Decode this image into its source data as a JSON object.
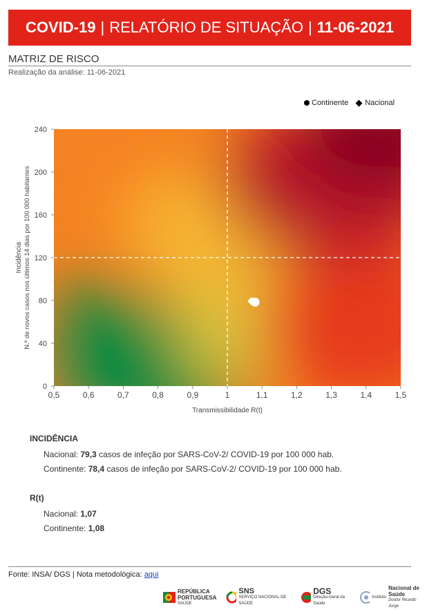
{
  "header": {
    "part1": "COVID-19",
    "sep1": "|",
    "part2": "RELATÓRIO DE SITUAÇÃO",
    "sep2": "|",
    "part3": "11-06-2021"
  },
  "section": {
    "title": "MATRIZ DE RISCO",
    "subtitle": "Realização da análise: 11-06-2021"
  },
  "legend": {
    "continente": "Continente",
    "nacional": "Nacional"
  },
  "chart_data": {
    "type": "scatter",
    "xlabel": "Transmissibilidade R(t)",
    "ylabel_line1": "Incidência",
    "ylabel_line2": "N.º de novos casos nos últimos 14 dias por 100 000 habitantes",
    "xlim": [
      0.5,
      1.5
    ],
    "ylim": [
      0,
      240
    ],
    "x_ticks": [
      "0,5",
      "0,6",
      "0,7",
      "0,8",
      "0,9",
      "1",
      "1,1",
      "1,2",
      "1,3",
      "1,4",
      "1,5"
    ],
    "y_ticks": [
      "0",
      "40",
      "80",
      "120",
      "160",
      "200",
      "240"
    ],
    "thresholds": {
      "x": 1,
      "y": 120
    },
    "series": [
      {
        "name": "Continente",
        "marker": "circle",
        "x": 1.08,
        "y": 78.4,
        "color": "#ffffff"
      },
      {
        "name": "Nacional",
        "marker": "diamond",
        "x": 1.07,
        "y": 79.3,
        "color": "#ffffff"
      }
    ],
    "background_colors": {
      "green": "#048a3f",
      "yellow": "#f7b733",
      "orange": "#f58220",
      "red": "#e63b1e",
      "darkred": "#850020"
    }
  },
  "incidencia": {
    "title": "INCIDÊNCIA",
    "nacional_label": "Nacional:",
    "nacional_value": "79,3",
    "nacional_text": "casos de infeção por SARS-CoV-2/ COVID-19 por 100 000 hab.",
    "continente_label": "Continente:",
    "continente_value": "78,4",
    "continente_text": "casos de infeção por SARS-CoV-2/ COVID-19 por 100 000 hab."
  },
  "rt": {
    "title": "R(t)",
    "nacional_label": "Nacional:",
    "nacional_value": "1,07",
    "continente_label": "Continente:",
    "continente_value": "1,08"
  },
  "footer": {
    "source": "Fonte: INSA/ DGS  |  Nota metodológica:",
    "link": "aqui"
  },
  "logos": {
    "republica_line1": "REPÚBLICA",
    "republica_line2": "PORTUGUESA",
    "republica_line3": "SAÚDE",
    "sns": "SNS",
    "sns_sub": "SERVIÇO NACIONAL DE SAÚDE",
    "dgs": "DGS",
    "dgs_sub": "Direção-Geral da Saúde",
    "insa_prefix": "Instituto",
    "insa": "Nacional de Saúde",
    "insa_sub": "Doutor Ricardo Jorge"
  }
}
